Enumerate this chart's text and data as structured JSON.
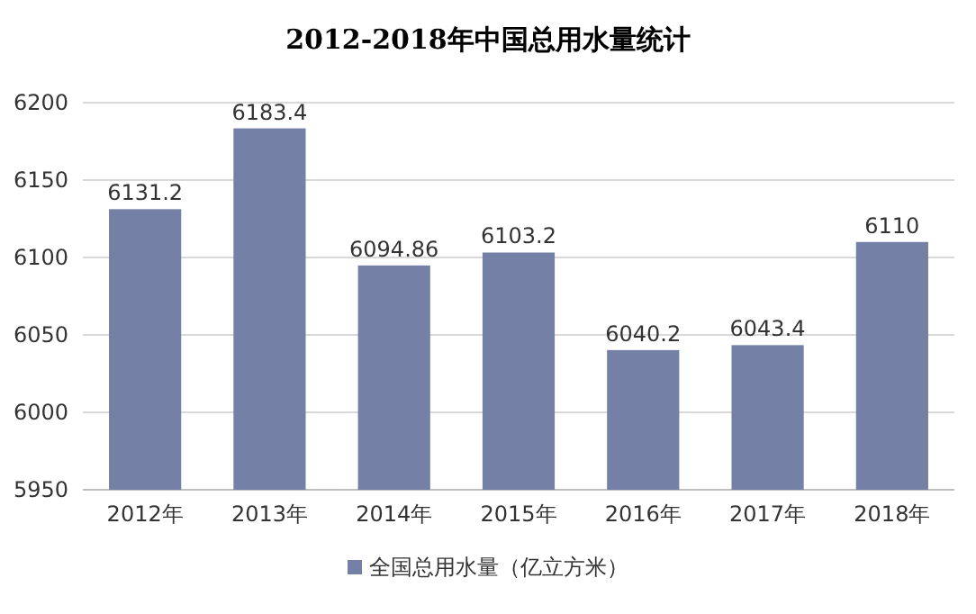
{
  "chart_data": {
    "type": "bar",
    "title": "2012-2018年中国总用水量统计",
    "categories": [
      "2012年",
      "2013年",
      "2014年",
      "2015年",
      "2016年",
      "2017年",
      "2018年"
    ],
    "series": [
      {
        "name": "全国总用水量（亿立方米）",
        "color": "#7580a6",
        "values": [
          6131.2,
          6183.4,
          6094.86,
          6103.2,
          6040.2,
          6043.4,
          6110
        ]
      }
    ],
    "ylim": [
      5950,
      6200
    ],
    "yticks": [
      5950,
      6000,
      6050,
      6100,
      6150,
      6200
    ],
    "grid": "y",
    "legend": "bottom",
    "data_labels": true
  }
}
